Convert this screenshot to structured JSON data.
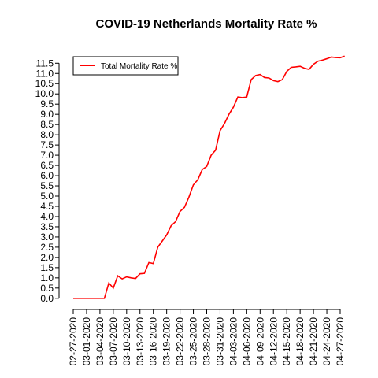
{
  "chart_data": {
    "type": "line",
    "title": "COVID-19 Netherlands Mortality Rate %",
    "categories": [
      "02-27-2020",
      null,
      null,
      "03-01-2020",
      null,
      null,
      "03-04-2020",
      null,
      null,
      "03-07-2020",
      null,
      null,
      "03-10-2020",
      null,
      null,
      "03-13-2020",
      null,
      null,
      "03-16-2020",
      null,
      null,
      "03-19-2020",
      null,
      null,
      "03-22-2020",
      null,
      null,
      "03-25-2020",
      null,
      null,
      "03-28-2020",
      null,
      null,
      "03-31-2020",
      null,
      null,
      "04-03-2020",
      null,
      null,
      "04-06-2020",
      null,
      null,
      "04-09-2020",
      null,
      null,
      "04-12-2020",
      null,
      null,
      "04-15-2020",
      null,
      null,
      "04-18-2020",
      null,
      null,
      "04-21-2020",
      null,
      null,
      "04-24-2020",
      null,
      null,
      "04-27-2020",
      null
    ],
    "series": [
      {
        "name": "Total Mortality Rate %",
        "color": "#ff0000",
        "values": [
          0,
          0,
          0,
          0,
          0,
          0,
          0,
          0,
          0.75,
          0.5,
          1.1,
          0.95,
          1.05,
          1.0,
          0.97,
          1.2,
          1.22,
          1.75,
          1.7,
          2.5,
          2.8,
          3.1,
          3.55,
          3.75,
          4.25,
          4.45,
          4.95,
          5.55,
          5.8,
          6.3,
          6.45,
          7.0,
          7.25,
          8.2,
          8.55,
          9.0,
          9.35,
          9.85,
          9.82,
          9.85,
          10.7,
          10.9,
          10.95,
          10.8,
          10.78,
          10.65,
          10.6,
          10.7,
          11.1,
          11.3,
          11.32,
          11.35,
          11.25,
          11.2,
          11.45,
          11.6,
          11.65,
          11.72,
          11.8,
          11.78,
          11.77,
          11.85
        ]
      }
    ],
    "ylim": [
      -0.47,
      12.32
    ],
    "yticks": [
      {
        "value": 0,
        "label": "0.0"
      },
      0.5,
      {
        "value": 1,
        "label": "1.0"
      },
      1.5,
      {
        "value": 2,
        "label": "2.0"
      },
      2.5,
      {
        "value": 3,
        "label": "3.0"
      },
      3.5,
      {
        "value": 4,
        "label": "4.0"
      },
      4.5,
      {
        "value": 5,
        "label": "5.0"
      },
      5.5,
      {
        "value": 6,
        "label": "6.0"
      },
      6.5,
      {
        "value": 7,
        "label": "7.0"
      },
      7.5,
      {
        "value": 8,
        "label": "8.0"
      },
      8.5,
      {
        "value": 9,
        "label": "9.0"
      },
      9.5,
      {
        "value": 10,
        "label": "10.0"
      },
      10.5,
      {
        "value": 11,
        "label": "11.0"
      },
      11.5
    ],
    "legend": "top-left"
  }
}
